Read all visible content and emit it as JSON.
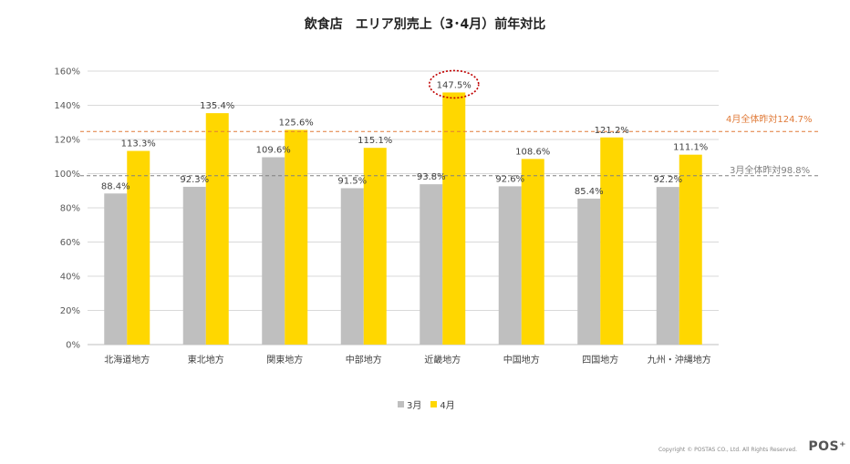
{
  "chart_data": {
    "type": "bar",
    "title": "飲食店　エリア別売上（3･4月）前年対比",
    "categories": [
      "北海道地方",
      "東北地方",
      "関東地方",
      "中部地方",
      "近畿地方",
      "中国地方",
      "四国地方",
      "九州・沖縄地方"
    ],
    "series": [
      {
        "name": "3月",
        "color": "#bfbfbf",
        "values": [
          88.4,
          92.3,
          109.6,
          91.5,
          93.8,
          92.6,
          85.4,
          92.2
        ],
        "labels": [
          "88.4%",
          "92.3%",
          "109.6%",
          "91.5%",
          "93.8%",
          "92.6%",
          "85.4%",
          "92.2%"
        ]
      },
      {
        "name": "4月",
        "color": "#ffd700",
        "values": [
          113.3,
          135.4,
          125.6,
          115.1,
          147.5,
          108.6,
          121.2,
          111.1
        ],
        "labels": [
          "113.3%",
          "135.4%",
          "125.6%",
          "115.1%",
          "147.5%",
          "108.6%",
          "121.2%",
          "111.1%"
        ]
      }
    ],
    "ylim": [
      0,
      160
    ],
    "yticks": [
      0,
      20,
      40,
      60,
      80,
      100,
      120,
      140,
      160
    ],
    "ytick_labels": [
      "0%",
      "20%",
      "40%",
      "60%",
      "80%",
      "100%",
      "120%",
      "140%",
      "160%"
    ],
    "reference_lines": [
      {
        "label": "4月全体昨対124.7%",
        "value": 124.7,
        "color": "#e07b39"
      },
      {
        "label": "3月全体昨対98.8%",
        "value": 98.8,
        "color": "#808080"
      }
    ],
    "highlight": {
      "category": "近畿地方",
      "series": "4月",
      "color": "#c00000"
    },
    "legend_position": "bottom",
    "grid": true
  },
  "footer": {
    "copyright": "Copyright © POSTAS CO., Ltd. All Rights Reserved.",
    "logo": "POS⁺"
  }
}
